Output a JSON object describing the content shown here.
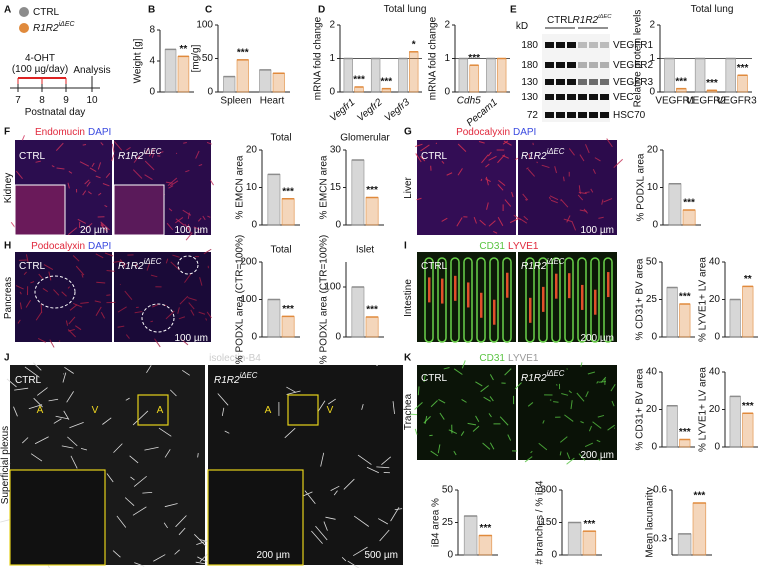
{
  "legend": [
    {
      "name": "CTRL",
      "color": "#8c8c8c"
    },
    {
      "name": "R1R2",
      "sup": "iΔEC",
      "color": "#e08a3c"
    }
  ],
  "letters": [
    "A",
    "B",
    "C",
    "D",
    "E",
    "F",
    "G",
    "H",
    "I",
    "J",
    "K"
  ],
  "image_texts": [
    {
      "text": "4-OHT"
    },
    {
      "text": "(100 µg/day)"
    },
    {
      "text": "Analysis"
    },
    {
      "text": "7"
    },
    {
      "text": "8"
    },
    {
      "text": "9"
    },
    {
      "text": "10"
    },
    {
      "text": "Postnatal day"
    },
    {
      "text": "Total lung"
    },
    {
      "text": "Total lung"
    },
    {
      "text": "kD"
    },
    {
      "text": "CTRL"
    },
    {
      "text": "R1R2",
      "sup": "iΔEC"
    },
    {
      "text": "180"
    },
    {
      "text": "180"
    },
    {
      "text": "130"
    },
    {
      "text": "130"
    },
    {
      "text": "72"
    },
    {
      "text": "VEGFR1"
    },
    {
      "text": "VEGFR2"
    },
    {
      "text": "VEGFR3"
    },
    {
      "text": "VEC"
    },
    {
      "text": "HSC70"
    },
    {
      "text": "Endomucin"
    },
    {
      "text": "DAPI"
    },
    {
      "text": "CTRL"
    },
    {
      "text": "R1R2",
      "sup": "iΔEC"
    },
    {
      "text": "Kidney"
    },
    {
      "text": "20 µm"
    },
    {
      "text": "100 µm"
    },
    {
      "text": "Podocalyxin"
    },
    {
      "text": "DAPI"
    },
    {
      "text": "CTRL"
    },
    {
      "text": "R1R2",
      "sup": "iΔEC"
    },
    {
      "text": "Liver"
    },
    {
      "text": "100 µm"
    },
    {
      "text": "Podocalyxin"
    },
    {
      "text": "DAPI"
    },
    {
      "text": "CTRL"
    },
    {
      "text": "R1R2",
      "sup": "iΔEC"
    },
    {
      "text": "Pancreas"
    },
    {
      "text": "100 µm"
    },
    {
      "text": "CD31"
    },
    {
      "text": "LYVE1"
    },
    {
      "text": "CTRL"
    },
    {
      "text": "R1R2",
      "sup": "iΔEC"
    },
    {
      "text": "Intestine"
    },
    {
      "text": "200 µm"
    },
    {
      "text": "isolectin-B4"
    },
    {
      "text": "CTRL"
    },
    {
      "text": "R1R2",
      "sup": "iΔEC"
    },
    {
      "text": "A"
    },
    {
      "text": "V"
    },
    {
      "text": "A"
    },
    {
      "text": "A"
    },
    {
      "text": "V"
    },
    {
      "text": "Superficial plexus"
    },
    {
      "text": "200 µm"
    },
    {
      "text": "500 µm"
    },
    {
      "text": "CD31"
    },
    {
      "text": "LYVE1"
    },
    {
      "text": "CTRL"
    },
    {
      "text": "R1R2",
      "sup": "iΔEC"
    },
    {
      "text": "Trachea"
    },
    {
      "text": "200 µm"
    }
  ],
  "chart_data": [
    {
      "type": "bar",
      "ylabel": "Weight [g]",
      "ylim": [
        0,
        8
      ],
      "yticks": [
        0,
        4,
        8
      ],
      "series": [
        {
          "values": [
            5.5
          ]
        },
        {
          "values": [
            4.6
          ]
        }
      ],
      "significance": [
        "**"
      ]
    },
    {
      "type": "bar",
      "ylabel": "[mg/g]",
      "ylim": [
        0,
        100
      ],
      "yticks": [
        0,
        50,
        100
      ],
      "categories": [
        "Spleen",
        "Heart"
      ],
      "series": [
        {
          "values": [
            23,
            33
          ]
        },
        {
          "values": [
            48,
            28
          ]
        }
      ],
      "significance": [
        "***",
        null
      ]
    },
    {
      "type": "bar",
      "ylabel": "mRNA fold change",
      "ylim": [
        0,
        2
      ],
      "yticks": [
        0,
        1,
        2
      ],
      "categories": [
        "Vegfr1",
        "Vegfr2",
        "Vegfr3"
      ],
      "series": [
        {
          "values": [
            1,
            1,
            1
          ]
        },
        {
          "values": [
            0.15,
            0.1,
            1.2
          ]
        }
      ],
      "significance": [
        "***",
        "***",
        "*"
      ],
      "refline": 1
    },
    {
      "type": "bar",
      "ylabel": "mRNA fold change",
      "ylim": [
        0,
        2
      ],
      "yticks": [
        0,
        1,
        2
      ],
      "categories": [
        "Cdh5",
        "Pecam1"
      ],
      "series": [
        {
          "values": [
            1,
            1
          ]
        },
        {
          "values": [
            0.8,
            1.0
          ]
        }
      ],
      "significance": [
        "***",
        null
      ],
      "refline": 1
    },
    {
      "type": "bar",
      "ylabel": "Relative protein levels",
      "ylim": [
        0,
        2
      ],
      "yticks": [
        0,
        1,
        2
      ],
      "categories": [
        "VEGFR1",
        "VEGFR2",
        "VEGFR3"
      ],
      "series": [
        {
          "values": [
            1,
            1,
            1
          ]
        },
        {
          "values": [
            0.1,
            0.05,
            0.5
          ]
        }
      ],
      "significance": [
        "***",
        "***",
        "***"
      ],
      "refline": 1
    },
    {
      "type": "bar",
      "title": "Total",
      "ylabel": "% EMCN area",
      "ylim": [
        0,
        20
      ],
      "yticks": [
        0,
        10,
        20
      ],
      "series": [
        {
          "values": [
            13.5
          ]
        },
        {
          "values": [
            7
          ]
        }
      ],
      "significance": [
        "***"
      ]
    },
    {
      "type": "bar",
      "title": "Glomerular",
      "ylabel": "% EMCN area",
      "ylim": [
        0,
        30
      ],
      "yticks": [
        0,
        15,
        30
      ],
      "series": [
        {
          "values": [
            26
          ]
        },
        {
          "values": [
            11
          ]
        }
      ],
      "significance": [
        "***"
      ]
    },
    {
      "type": "bar",
      "ylabel": "% PODXL area",
      "ylim": [
        0,
        20
      ],
      "yticks": [
        0,
        10,
        20
      ],
      "series": [
        {
          "values": [
            11
          ]
        },
        {
          "values": [
            4
          ]
        }
      ],
      "significance": [
        "***"
      ]
    },
    {
      "type": "bar",
      "title": "Total",
      "ylabel": "% PODXL area (CTR=100%)",
      "ylim": [
        0,
        200
      ],
      "yticks": [
        0,
        100,
        200
      ],
      "series": [
        {
          "values": [
            100
          ]
        },
        {
          "values": [
            55
          ]
        }
      ],
      "significance": [
        "***"
      ]
    },
    {
      "type": "bar",
      "title": "Islet",
      "ylabel": "% PODXL area (CTR=100%)",
      "ylim": [
        0,
        150
      ],
      "yticks": [
        0,
        100
      ],
      "series": [
        {
          "values": [
            100
          ]
        },
        {
          "values": [
            40
          ]
        }
      ],
      "significance": [
        "***"
      ]
    },
    {
      "type": "bar",
      "ylabel": "% CD31+ BV area",
      "ylim": [
        0,
        50
      ],
      "yticks": [
        0,
        25,
        50
      ],
      "series": [
        {
          "values": [
            33
          ]
        },
        {
          "values": [
            22
          ]
        }
      ],
      "significance": [
        "***"
      ]
    },
    {
      "type": "bar",
      "ylabel": "% LYVE1+ LV area",
      "ylim": [
        0,
        40
      ],
      "yticks": [
        0,
        20,
        40
      ],
      "series": [
        {
          "values": [
            20
          ]
        },
        {
          "values": [
            27
          ]
        }
      ],
      "significance": [
        "**"
      ]
    },
    {
      "type": "bar",
      "ylabel": "% CD31+ BV area",
      "ylim": [
        0,
        40
      ],
      "yticks": [
        0,
        20,
        40
      ],
      "series": [
        {
          "values": [
            22
          ]
        },
        {
          "values": [
            4
          ]
        }
      ],
      "significance": [
        "***"
      ]
    },
    {
      "type": "bar",
      "ylabel": "% LYVE1+ LV area",
      "ylim": [
        0,
        40
      ],
      "yticks": [
        0,
        20,
        40
      ],
      "series": [
        {
          "values": [
            27
          ]
        },
        {
          "values": [
            18
          ]
        }
      ],
      "significance": [
        "***"
      ]
    },
    {
      "type": "bar",
      "ylabel": "iB4 area %",
      "ylim": [
        0,
        50
      ],
      "yticks": [
        0,
        25,
        50
      ],
      "series": [
        {
          "values": [
            30
          ]
        },
        {
          "values": [
            15
          ]
        }
      ],
      "significance": [
        "***"
      ]
    },
    {
      "type": "bar",
      "ylabel": "# branches / % iB4",
      "ylim": [
        0,
        300
      ],
      "yticks": [
        0,
        150,
        300
      ],
      "series": [
        {
          "values": [
            150
          ]
        },
        {
          "values": [
            110
          ]
        }
      ],
      "significance": [
        "***"
      ]
    },
    {
      "type": "bar",
      "ylabel": "Mean lacunarity",
      "ylim": [
        0.2,
        0.6
      ],
      "yticks": [
        0.3,
        0.6
      ],
      "series": [
        {
          "values": [
            0.33
          ]
        },
        {
          "values": [
            0.52
          ]
        }
      ],
      "significance": [
        "***"
      ]
    }
  ]
}
